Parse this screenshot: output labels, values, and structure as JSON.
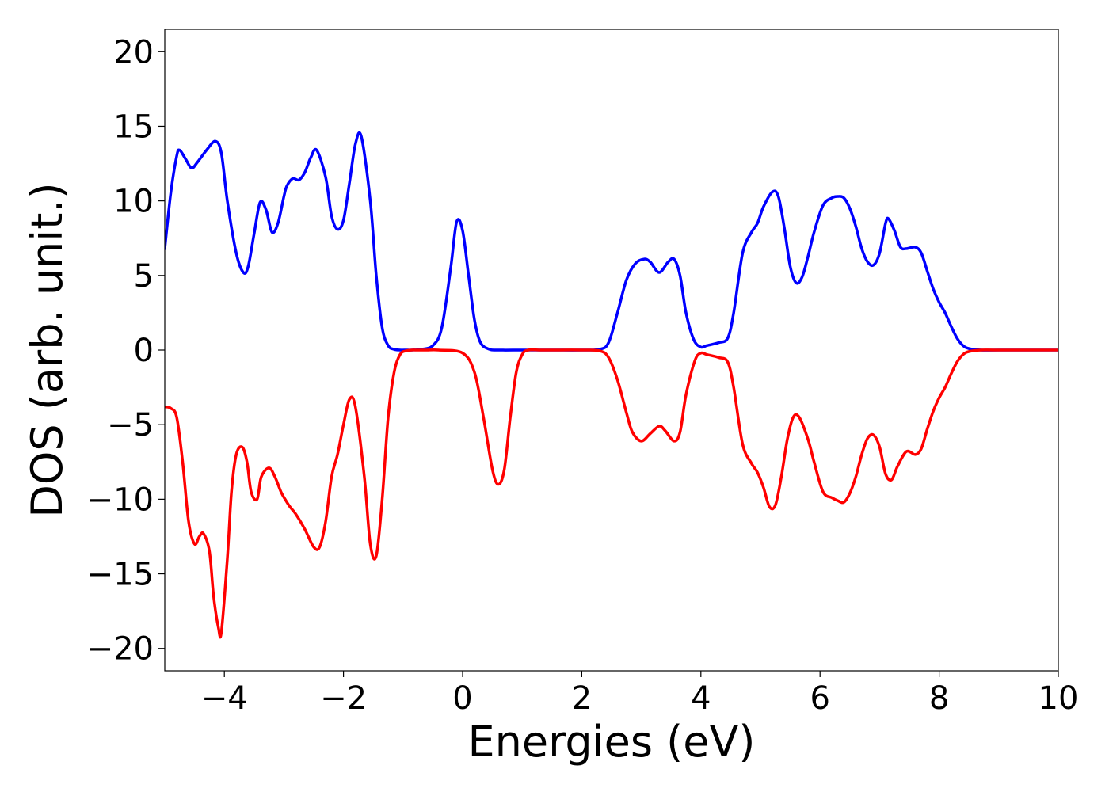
{
  "chart_data": {
    "type": "line",
    "title": "",
    "xlabel": "Energies (eV)",
    "ylabel": "DOS (arb. unit.)",
    "xlim": [
      -5,
      10
    ],
    "ylim": [
      -21.5,
      21.5
    ],
    "xticks": [
      -4,
      -2,
      0,
      2,
      4,
      6,
      8,
      10
    ],
    "yticks": [
      -20,
      -15,
      -10,
      -5,
      0,
      5,
      10,
      15,
      20
    ],
    "grid": false,
    "legend": "none",
    "series": [
      {
        "color": "#0000ff",
        "x": [
          -5.0,
          -4.9,
          -4.8,
          -4.75,
          -4.65,
          -4.55,
          -4.45,
          -4.3,
          -4.15,
          -4.05,
          -3.95,
          -3.8,
          -3.68,
          -3.6,
          -3.5,
          -3.4,
          -3.3,
          -3.2,
          -3.1,
          -3.0,
          -2.95,
          -2.85,
          -2.75,
          -2.65,
          -2.55,
          -2.45,
          -2.3,
          -2.2,
          -2.1,
          -2.0,
          -1.9,
          -1.8,
          -1.7,
          -1.55,
          -1.45,
          -1.35,
          -1.25,
          -1.15,
          -1.05,
          -0.95,
          -0.85,
          -0.7,
          -0.5,
          -0.35,
          -0.2,
          -0.1,
          0.0,
          0.1,
          0.2,
          0.3,
          0.45,
          0.6,
          1.0,
          1.5,
          2.0,
          2.3,
          2.45,
          2.6,
          2.75,
          2.9,
          3.05,
          3.15,
          3.3,
          3.45,
          3.55,
          3.65,
          3.75,
          3.88,
          4.0,
          4.1,
          4.3,
          4.45,
          4.55,
          4.7,
          4.85,
          4.95,
          5.05,
          5.2,
          5.3,
          5.4,
          5.5,
          5.6,
          5.7,
          5.8,
          5.9,
          6.05,
          6.2,
          6.3,
          6.4,
          6.5,
          6.6,
          6.7,
          6.8,
          6.9,
          7.0,
          7.1,
          7.15,
          7.25,
          7.35,
          7.45,
          7.6,
          7.7,
          7.8,
          7.9,
          8.0,
          8.1,
          8.2,
          8.3,
          8.4,
          8.5,
          8.7,
          9.0,
          10.0
        ],
        "y": [
          6.8,
          10.5,
          13.0,
          13.4,
          12.8,
          12.2,
          12.6,
          13.4,
          14.0,
          13.2,
          10.0,
          6.5,
          5.2,
          5.6,
          7.8,
          9.9,
          9.4,
          7.9,
          8.5,
          10.3,
          11.0,
          11.5,
          11.4,
          11.9,
          12.9,
          13.4,
          11.6,
          9.0,
          8.1,
          8.7,
          11.2,
          13.8,
          14.3,
          10.0,
          5.0,
          1.5,
          0.3,
          0.05,
          0.0,
          0.0,
          0.0,
          0.05,
          0.3,
          1.5,
          5.5,
          8.6,
          8.0,
          5.0,
          2.0,
          0.5,
          0.05,
          0.0,
          0.0,
          0.0,
          0.0,
          0.05,
          0.5,
          2.5,
          4.7,
          5.8,
          6.1,
          5.9,
          5.2,
          5.9,
          6.1,
          5.0,
          2.5,
          0.7,
          0.2,
          0.3,
          0.5,
          0.8,
          2.5,
          6.5,
          7.9,
          8.5,
          9.6,
          10.6,
          10.3,
          8.2,
          5.6,
          4.5,
          4.9,
          6.3,
          7.9,
          9.7,
          10.2,
          10.3,
          10.2,
          9.5,
          8.3,
          6.8,
          5.9,
          5.7,
          6.5,
          8.5,
          8.8,
          8.0,
          6.9,
          6.8,
          6.9,
          6.5,
          5.3,
          4.1,
          3.2,
          2.5,
          1.6,
          0.8,
          0.3,
          0.1,
          0.0,
          0.0,
          0.0
        ]
      },
      {
        "color": "#ff0000",
        "x": [
          -5.0,
          -4.9,
          -4.8,
          -4.7,
          -4.6,
          -4.5,
          -4.42,
          -4.35,
          -4.25,
          -4.18,
          -4.1,
          -4.05,
          -3.95,
          -3.88,
          -3.8,
          -3.7,
          -3.62,
          -3.55,
          -3.45,
          -3.38,
          -3.25,
          -3.15,
          -3.05,
          -2.98,
          -2.9,
          -2.8,
          -2.65,
          -2.5,
          -2.4,
          -2.3,
          -2.2,
          -2.1,
          -2.0,
          -1.9,
          -1.8,
          -1.65,
          -1.55,
          -1.45,
          -1.35,
          -1.25,
          -1.15,
          -1.05,
          -0.95,
          -0.85,
          -0.75,
          -0.6,
          -0.4,
          0.0,
          0.2,
          0.35,
          0.5,
          0.6,
          0.7,
          0.8,
          0.9,
          1.0,
          1.1,
          1.3,
          1.5,
          2.0,
          2.3,
          2.45,
          2.6,
          2.75,
          2.85,
          3.0,
          3.15,
          3.3,
          3.4,
          3.55,
          3.65,
          3.75,
          3.9,
          4.0,
          4.1,
          4.3,
          4.45,
          4.55,
          4.7,
          4.85,
          4.95,
          5.05,
          5.15,
          5.25,
          5.35,
          5.45,
          5.55,
          5.65,
          5.8,
          5.9,
          6.05,
          6.2,
          6.3,
          6.4,
          6.5,
          6.6,
          6.7,
          6.8,
          6.9,
          7.0,
          7.1,
          7.2,
          7.3,
          7.45,
          7.6,
          7.7,
          7.8,
          7.9,
          8.0,
          8.1,
          8.2,
          8.3,
          8.4,
          8.5,
          8.7,
          9.0,
          10.0
        ],
        "y": [
          -3.8,
          -3.9,
          -4.5,
          -7.5,
          -11.5,
          -13.0,
          -12.5,
          -12.3,
          -13.5,
          -16.5,
          -18.6,
          -18.9,
          -14.0,
          -9.5,
          -7.0,
          -6.5,
          -7.5,
          -9.5,
          -10.0,
          -8.5,
          -7.9,
          -8.5,
          -9.5,
          -10.0,
          -10.5,
          -11.0,
          -12.0,
          -13.2,
          -13.2,
          -11.5,
          -8.5,
          -7.0,
          -5.0,
          -3.3,
          -3.8,
          -8.5,
          -13.0,
          -13.8,
          -10.0,
          -4.5,
          -1.5,
          -0.3,
          -0.05,
          0.0,
          0.0,
          0.0,
          0.0,
          -0.2,
          -1.5,
          -4.5,
          -8.0,
          -9.0,
          -8.0,
          -4.5,
          -1.5,
          -0.3,
          0.0,
          0.0,
          0.0,
          0.0,
          -0.05,
          -0.5,
          -2.0,
          -4.2,
          -5.5,
          -6.1,
          -5.6,
          -5.1,
          -5.4,
          -6.1,
          -5.5,
          -3.0,
          -0.7,
          -0.2,
          -0.3,
          -0.5,
          -0.8,
          -2.5,
          -6.3,
          -7.6,
          -8.2,
          -9.2,
          -10.5,
          -10.4,
          -8.5,
          -6.0,
          -4.5,
          -4.5,
          -6.0,
          -7.5,
          -9.5,
          -9.9,
          -10.1,
          -10.2,
          -9.6,
          -8.5,
          -7.0,
          -5.9,
          -5.7,
          -6.5,
          -8.3,
          -8.7,
          -7.8,
          -6.8,
          -7.0,
          -6.6,
          -5.3,
          -4.1,
          -3.2,
          -2.5,
          -1.6,
          -0.8,
          -0.3,
          -0.1,
          0.0,
          0.0,
          0.0
        ]
      }
    ]
  }
}
